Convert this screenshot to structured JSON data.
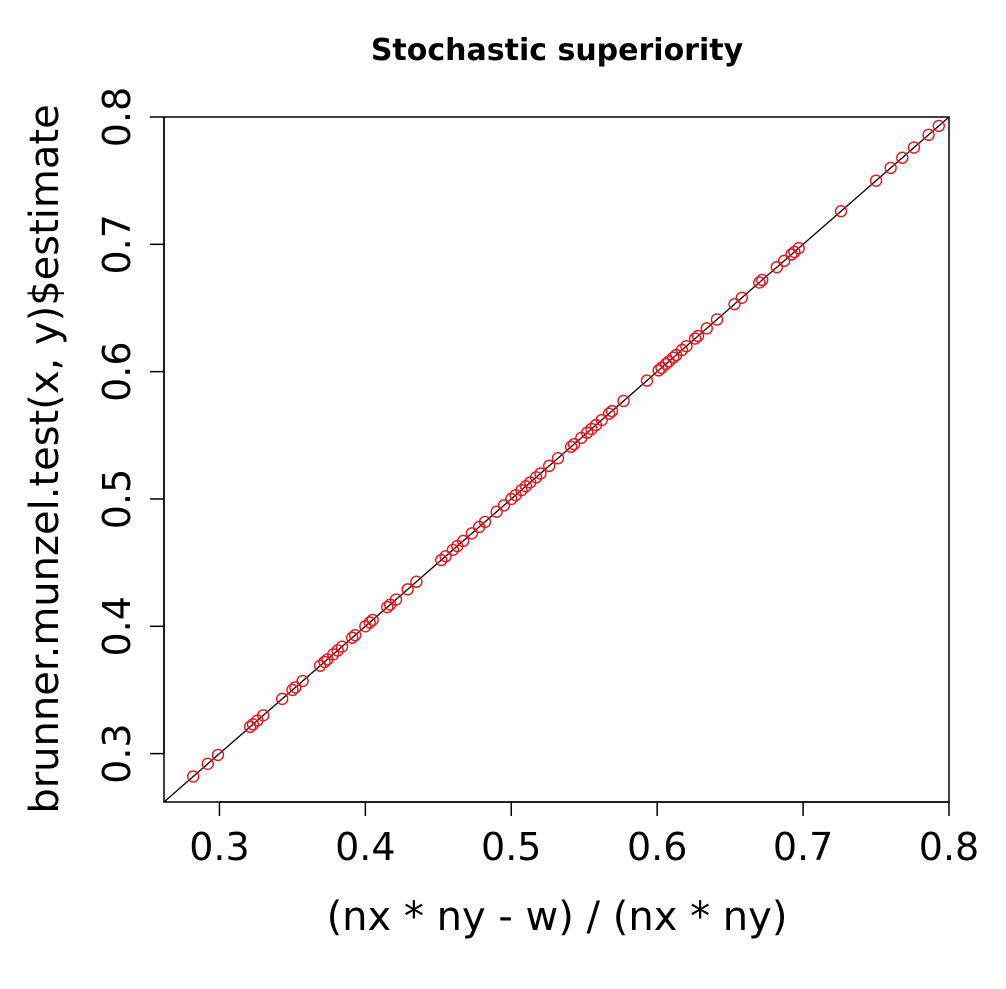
{
  "chart_data": {
    "type": "scatter",
    "title": "Stochastic superiority",
    "xlabel": "(nx * ny - w) / (nx * ny)",
    "ylabel": "brunner.munzel.test(x, y)$estimate",
    "xlim": [
      0.262,
      0.8
    ],
    "ylim": [
      0.262,
      0.8
    ],
    "x_ticks": [
      "0.3",
      "0.4",
      "0.5",
      "0.6",
      "0.7",
      "0.8"
    ],
    "y_ticks": [
      "0.3",
      "0.4",
      "0.5",
      "0.6",
      "0.7",
      "0.8"
    ],
    "reference_line": "y = x",
    "point_color": "#e8161c",
    "line_color": "#000000",
    "series": [
      {
        "name": "estimate",
        "x": [
          0.282,
          0.292,
          0.299,
          0.321,
          0.323,
          0.326,
          0.33,
          0.343,
          0.35,
          0.352,
          0.357,
          0.369,
          0.372,
          0.374,
          0.378,
          0.381,
          0.384,
          0.391,
          0.393,
          0.4,
          0.403,
          0.405,
          0.415,
          0.417,
          0.421,
          0.429,
          0.435,
          0.452,
          0.455,
          0.46,
          0.463,
          0.467,
          0.473,
          0.478,
          0.482,
          0.49,
          0.495,
          0.5,
          0.503,
          0.507,
          0.51,
          0.513,
          0.517,
          0.52,
          0.526,
          0.532,
          0.541,
          0.543,
          0.548,
          0.552,
          0.555,
          0.558,
          0.562,
          0.567,
          0.569,
          0.577,
          0.593,
          0.601,
          0.603,
          0.606,
          0.608,
          0.611,
          0.613,
          0.617,
          0.62,
          0.626,
          0.628,
          0.634,
          0.641,
          0.653,
          0.658,
          0.67,
          0.672,
          0.682,
          0.687,
          0.692,
          0.694,
          0.697,
          0.726,
          0.75,
          0.76,
          0.768,
          0.776,
          0.786,
          0.793
        ],
        "y": [
          0.282,
          0.292,
          0.299,
          0.321,
          0.323,
          0.326,
          0.33,
          0.343,
          0.35,
          0.352,
          0.357,
          0.369,
          0.372,
          0.374,
          0.378,
          0.381,
          0.384,
          0.391,
          0.393,
          0.4,
          0.403,
          0.405,
          0.415,
          0.417,
          0.421,
          0.429,
          0.435,
          0.452,
          0.455,
          0.46,
          0.463,
          0.467,
          0.473,
          0.478,
          0.482,
          0.49,
          0.495,
          0.5,
          0.503,
          0.507,
          0.51,
          0.513,
          0.517,
          0.52,
          0.526,
          0.532,
          0.541,
          0.543,
          0.548,
          0.552,
          0.555,
          0.558,
          0.562,
          0.567,
          0.569,
          0.577,
          0.593,
          0.601,
          0.603,
          0.606,
          0.608,
          0.611,
          0.613,
          0.617,
          0.62,
          0.626,
          0.628,
          0.634,
          0.641,
          0.653,
          0.658,
          0.67,
          0.672,
          0.682,
          0.687,
          0.692,
          0.694,
          0.697,
          0.726,
          0.75,
          0.76,
          0.768,
          0.776,
          0.786,
          0.793
        ]
      }
    ],
    "grid": false,
    "legend": "none"
  }
}
